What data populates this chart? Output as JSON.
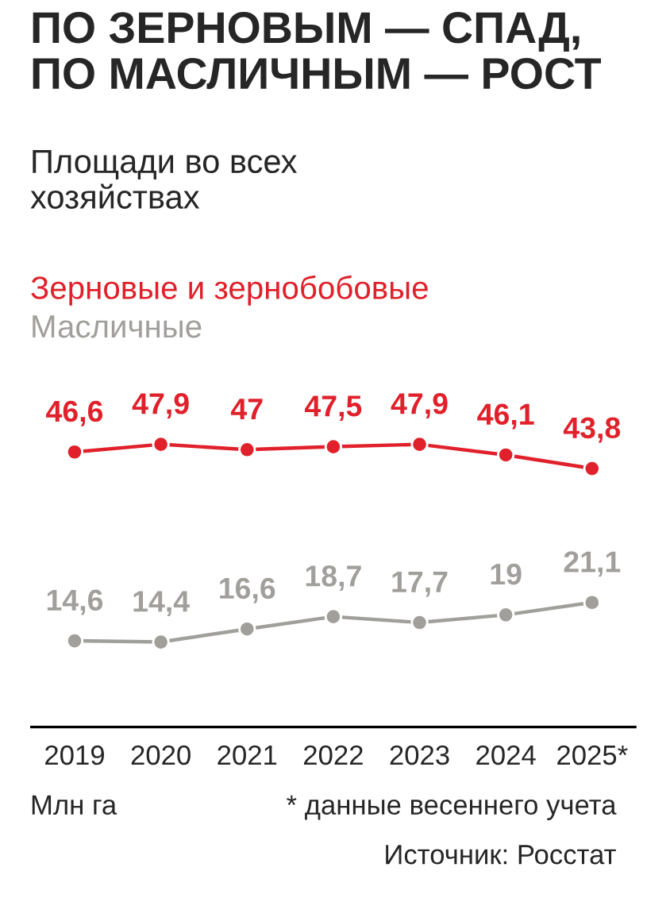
{
  "chart_data": {
    "type": "line",
    "title": "ПО ЗЕРНОВЫМ — СПАД,\nПО МАСЛИЧНЫМ — РОСТ",
    "subtitle": "Площади во всех\nхозяйствах",
    "categories": [
      "2019",
      "2020",
      "2021",
      "2022",
      "2023",
      "2024",
      "2025*"
    ],
    "series": [
      {
        "name": "Зерновые и зернобобовые",
        "color": "#e0202a",
        "values": [
          46.6,
          47.9,
          47,
          47.5,
          47.9,
          46.1,
          43.8
        ],
        "value_labels": [
          "46,6",
          "47,9",
          "47",
          "47,5",
          "47,9",
          "46,1",
          "43,8"
        ]
      },
      {
        "name": "Масличные",
        "color": "#a09f9b",
        "values": [
          14.6,
          14.4,
          16.6,
          18.7,
          17.7,
          19,
          21.1
        ],
        "value_labels": [
          "14,6",
          "14,4",
          "16,6",
          "18,7",
          "17,7",
          "19",
          "21,1"
        ]
      }
    ],
    "tick_labels": "x",
    "marker": "circle",
    "grid": false,
    "legend": false,
    "annotations": [
      "Млн га",
      "* данные весеннего учета",
      "Источник: Росстат"
    ]
  }
}
